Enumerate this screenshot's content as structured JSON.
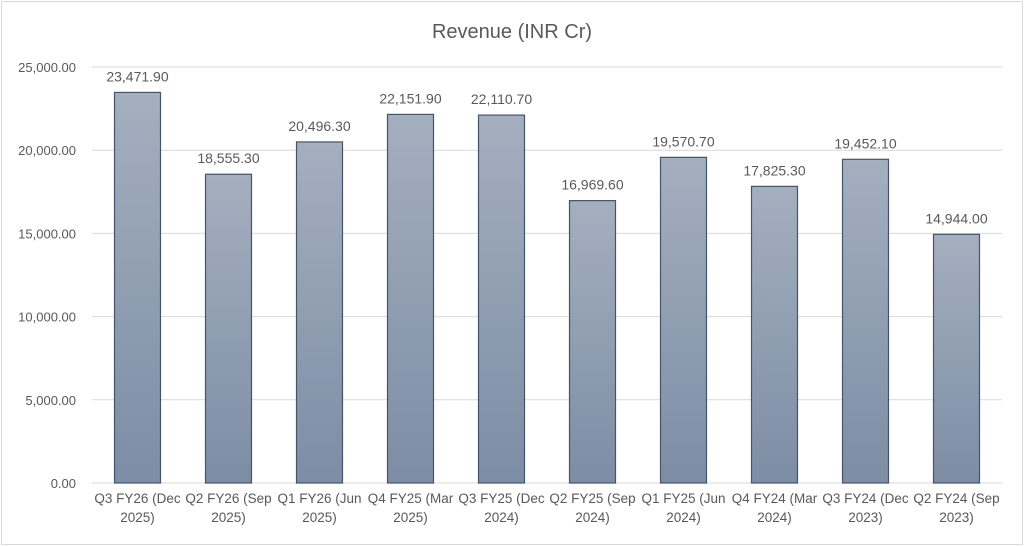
{
  "chart_data": {
    "type": "bar",
    "title": "Revenue (INR Cr)",
    "xlabel": "",
    "ylabel": "",
    "categories": [
      [
        "Q3 FY26 (Dec",
        "2025)"
      ],
      [
        "Q2 FY26 (Sep",
        "2025)"
      ],
      [
        "Q1 FY26 (Jun",
        "2025)"
      ],
      [
        "Q4 FY25 (Mar",
        "2025)"
      ],
      [
        "Q3 FY25 (Dec",
        "2024)"
      ],
      [
        "Q2 FY25 (Sep",
        "2024)"
      ],
      [
        "Q1 FY25 (Jun",
        "2024)"
      ],
      [
        "Q4 FY24 (Mar",
        "2024)"
      ],
      [
        "Q3 FY24 (Dec",
        "2023)"
      ],
      [
        "Q2 FY24 (Sep",
        "2023)"
      ]
    ],
    "values": [
      23471.9,
      18555.3,
      20496.3,
      22151.9,
      22110.7,
      16969.6,
      19570.7,
      17825.3,
      19452.1,
      14944.0
    ],
    "data_labels": [
      "23,471.90",
      "18,555.30",
      "20,496.30",
      "22,151.90",
      "22,110.70",
      "16,969.60",
      "19,570.70",
      "17,825.30",
      "19,452.10",
      "14,944.00"
    ],
    "ylim": [
      0,
      25000
    ],
    "yticks": [
      0,
      5000,
      10000,
      15000,
      20000,
      25000
    ],
    "ytick_labels": [
      "0.00",
      "5,000.00",
      "10,000.00",
      "15,000.00",
      "20,000.00",
      "25,000.00"
    ],
    "grid": true,
    "legend": "none",
    "colors": {
      "bar_top": "#a4afbf",
      "bar_bottom": "#7d8da5",
      "bar_border": "#44546a",
      "grid": "#d9d9d9",
      "text": "#595959"
    }
  }
}
